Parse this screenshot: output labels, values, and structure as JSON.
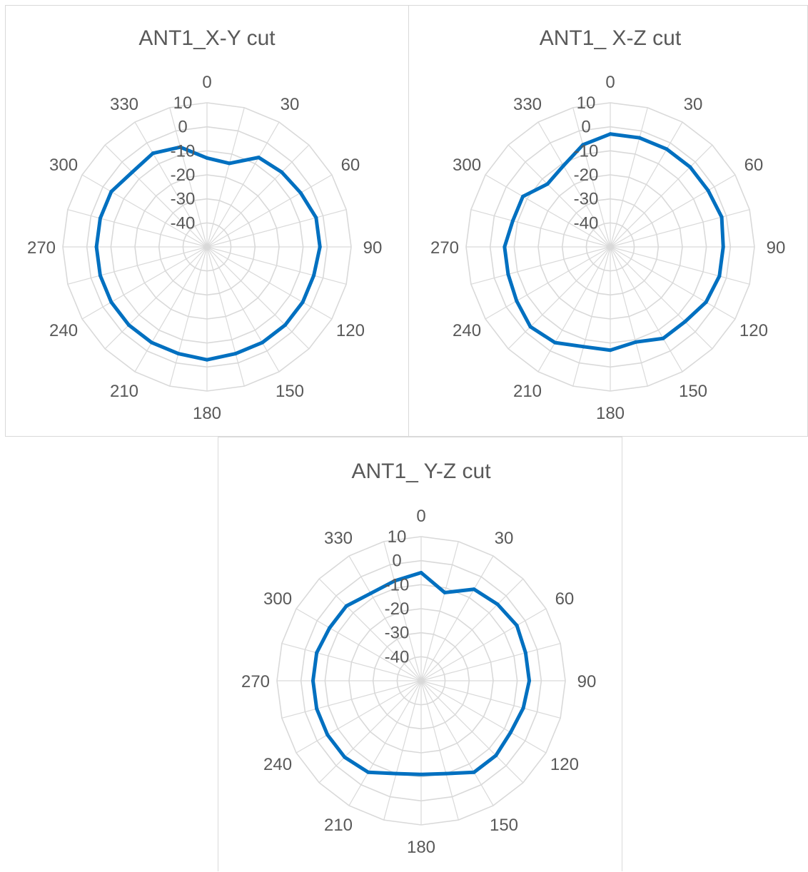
{
  "series_color": "#0070c0",
  "chart_data": [
    {
      "type": "radar",
      "title": "ANT1_X-Y cut",
      "angles": [
        0,
        15,
        30,
        45,
        60,
        75,
        90,
        105,
        120,
        135,
        150,
        165,
        180,
        195,
        210,
        225,
        240,
        255,
        270,
        285,
        300,
        315,
        330,
        345
      ],
      "angle_labels": [
        "0",
        "30",
        "60",
        "90",
        "120",
        "150",
        "180",
        "210",
        "240",
        "270",
        "300",
        "330"
      ],
      "radial_labels": [
        "10",
        "0",
        "-10",
        "-20",
        "-30",
        "-40"
      ],
      "rlim": [
        -50,
        10
      ],
      "grid": true,
      "values": [
        -13,
        -14,
        -7,
        -6,
        -5,
        -3,
        -3,
        -4,
        -4,
        -4,
        -4,
        -4,
        -3,
        -4,
        -4,
        -4,
        -4,
        -4,
        -4,
        -4,
        -4,
        -6,
        -5,
        -7
      ]
    },
    {
      "type": "radar",
      "title": "ANT1_ X-Z cut",
      "angles": [
        0,
        15,
        30,
        45,
        60,
        75,
        90,
        105,
        120,
        135,
        150,
        165,
        180,
        195,
        210,
        225,
        240,
        255,
        270,
        285,
        300,
        315,
        330,
        345
      ],
      "angle_labels": [
        "0",
        "30",
        "60",
        "90",
        "120",
        "150",
        "180",
        "210",
        "240",
        "270",
        "300",
        "330"
      ],
      "radial_labels": [
        "10",
        "0",
        "-10",
        "-20",
        "-30",
        "-40"
      ],
      "rlim": [
        -50,
        10
      ],
      "grid": true,
      "values": [
        -3,
        -3,
        -3,
        -3,
        -3,
        -2,
        -3,
        -3,
        -4,
        -6,
        -6,
        -9,
        -7,
        -7,
        -4,
        -3,
        -5,
        -6,
        -6,
        -8,
        -8,
        -13,
        -11,
        -6
      ]
    },
    {
      "type": "radar",
      "title": "ANT1_ Y-Z cut",
      "angles": [
        0,
        15,
        30,
        45,
        60,
        75,
        90,
        105,
        120,
        135,
        150,
        165,
        180,
        195,
        210,
        225,
        240,
        255,
        270,
        285,
        300,
        315,
        330,
        345
      ],
      "angle_labels": [
        "0",
        "30",
        "60",
        "90",
        "120",
        "150",
        "180",
        "210",
        "240",
        "270",
        "300",
        "330"
      ],
      "radial_labels": [
        "10",
        "0",
        "-10",
        "-20",
        "-30",
        "-40"
      ],
      "rlim": [
        -50,
        10
      ],
      "grid": true,
      "values": [
        -5,
        -12,
        -6,
        -5,
        -4,
        -5,
        -5,
        -6,
        -7,
        -6,
        -6,
        -10,
        -11,
        -10,
        -6,
        -5,
        -5,
        -5,
        -5,
        -5,
        -6,
        -6,
        -8,
        -7
      ]
    }
  ]
}
